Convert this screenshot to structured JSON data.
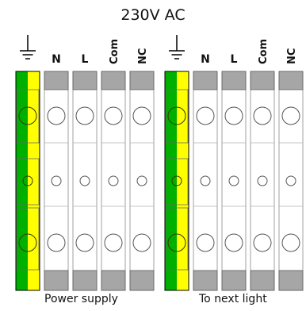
{
  "title": "230V AC",
  "captions": {
    "left": "Power supply",
    "right": "To next light"
  },
  "groups": [
    {
      "caption": "Power supply",
      "terminals": [
        {
          "kind": "earth",
          "label": "",
          "icon": "earth-ground-icon"
        },
        {
          "kind": "plain",
          "label": "N"
        },
        {
          "kind": "plain",
          "label": "L"
        },
        {
          "kind": "plain",
          "label": "Com"
        },
        {
          "kind": "plain",
          "label": "NC"
        }
      ]
    },
    {
      "caption": "To next light",
      "terminals": [
        {
          "kind": "earth",
          "label": "",
          "icon": "earth-ground-icon"
        },
        {
          "kind": "plain",
          "label": "N"
        },
        {
          "kind": "plain",
          "label": "L"
        },
        {
          "kind": "plain",
          "label": "Com"
        },
        {
          "kind": "plain",
          "label": "NC"
        }
      ]
    }
  ],
  "colors": {
    "earth_green": "#00b000",
    "earth_yellow": "#ffff00",
    "terminal_white": "#ffffff",
    "terminal_gray": "#a6a6a6",
    "outline": "#000000"
  }
}
